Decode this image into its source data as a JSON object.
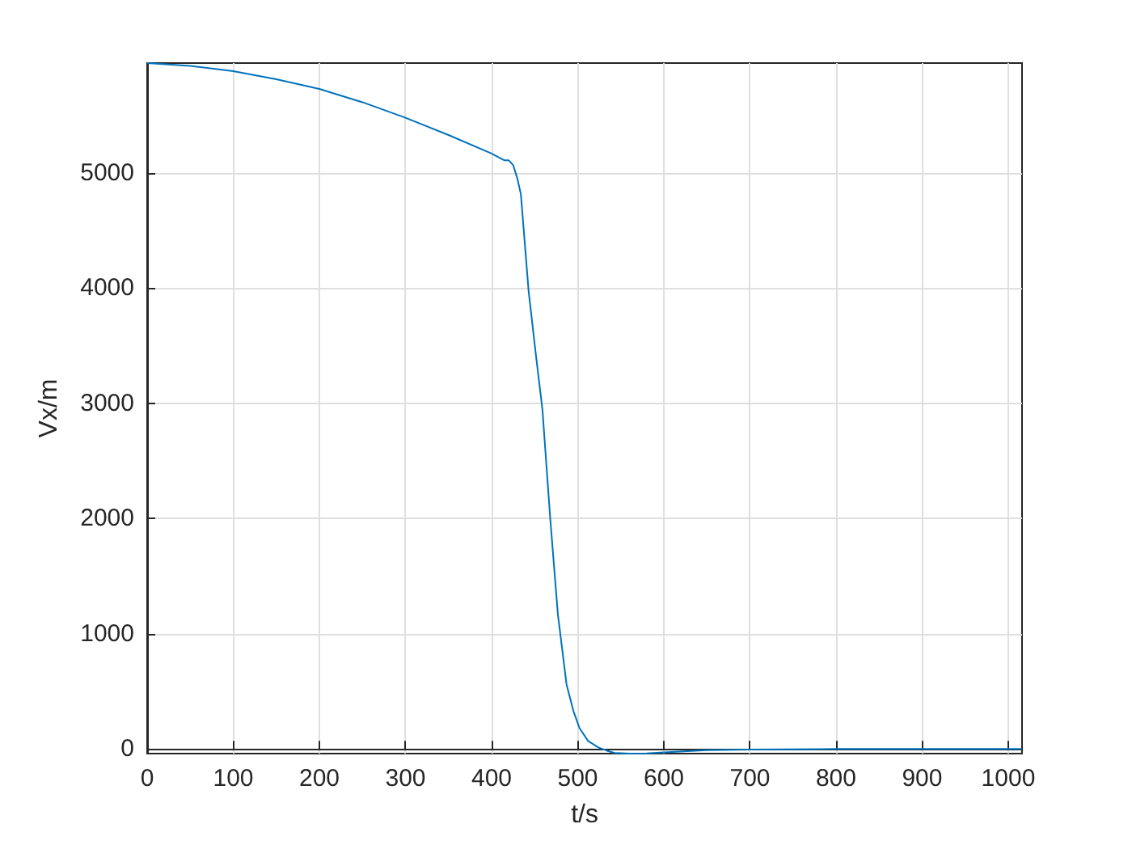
{
  "chart_data": {
    "type": "line",
    "xlabel": "t/s",
    "ylabel": "Vx/m",
    "x": [
      0,
      50,
      100,
      150,
      200,
      250,
      300,
      350,
      400,
      410,
      415,
      420,
      425,
      430,
      434,
      443,
      451,
      459,
      468,
      477,
      487,
      495,
      502,
      512,
      524,
      534,
      543,
      560,
      580,
      600,
      650,
      700,
      800,
      900,
      1016
    ],
    "series": [
      {
        "color": "#0072bd",
        "values": [
          5955,
          5930,
          5885,
          5815,
          5730,
          5615,
          5480,
          5330,
          5170,
          5130,
          5110,
          5110,
          5070,
          4950,
          4817,
          3975,
          3450,
          2950,
          2010,
          1166,
          562,
          330,
          183,
          70,
          14,
          -15,
          -35,
          -40,
          -38,
          -30,
          -10,
          -5,
          0,
          0,
          0
        ]
      }
    ],
    "xlim": [
      0,
      1016
    ],
    "xticks": [
      0,
      100,
      200,
      300,
      400,
      500,
      600,
      700,
      800,
      900,
      1000
    ],
    "ylim": [
      -40,
      5955
    ],
    "yticks": [
      0,
      1000,
      2000,
      3000,
      4000,
      5000
    ],
    "grid": true,
    "marker": "none",
    "line_style": "solid"
  }
}
